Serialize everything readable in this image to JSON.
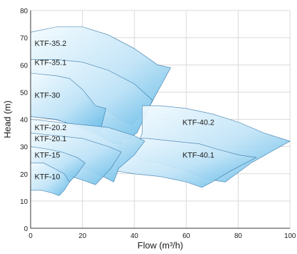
{
  "chart_data": {
    "type": "area",
    "title": "",
    "xlabel": "Flow (m³/h)",
    "ylabel": "Head (m)",
    "xlim": [
      0,
      100
    ],
    "ylim": [
      0,
      80
    ],
    "x_ticks": [
      0,
      20,
      40,
      60,
      80,
      100
    ],
    "y_ticks": [
      0,
      10,
      20,
      30,
      40,
      50,
      60,
      70,
      80
    ],
    "grid": true,
    "legend": "none",
    "colors": {
      "fill_light": "#eaf6fd",
      "fill_dark": "#5fb8e6",
      "stroke": "#3a78a8",
      "grid": "#d9d9d9"
    },
    "series": [
      {
        "name": "KTF-35.2",
        "points": [
          [
            0,
            72
          ],
          [
            10,
            74
          ],
          [
            20,
            74
          ],
          [
            30,
            71
          ],
          [
            40,
            66
          ],
          [
            49,
            60
          ],
          [
            54,
            59
          ],
          [
            46,
            45
          ],
          [
            39,
            38
          ],
          [
            36,
            39
          ],
          [
            30,
            43
          ],
          [
            20,
            47
          ],
          [
            10,
            50
          ],
          [
            0,
            52
          ]
        ]
      },
      {
        "name": "KTF-35.1",
        "points": [
          [
            0,
            62
          ],
          [
            10,
            62
          ],
          [
            20,
            61
          ],
          [
            30,
            58
          ],
          [
            40,
            53
          ],
          [
            47,
            47
          ],
          [
            41,
            35
          ],
          [
            35,
            31
          ],
          [
            32,
            31
          ],
          [
            27,
            34
          ],
          [
            18,
            38
          ],
          [
            9,
            40
          ],
          [
            0,
            41
          ]
        ]
      },
      {
        "name": "KTF-30",
        "points": [
          [
            0,
            57
          ],
          [
            10,
            56
          ],
          [
            15,
            55
          ],
          [
            20,
            51
          ],
          [
            25,
            45
          ],
          [
            29,
            44
          ],
          [
            27,
            36
          ],
          [
            24,
            35
          ],
          [
            19,
            37
          ],
          [
            10,
            40
          ],
          [
            0,
            41
          ]
        ]
      },
      {
        "name": "KTF-40.2",
        "points": [
          [
            43,
            45
          ],
          [
            50,
            45
          ],
          [
            60,
            44
          ],
          [
            70,
            42
          ],
          [
            80,
            39
          ],
          [
            90,
            35
          ],
          [
            100,
            32
          ],
          [
            85,
            24
          ],
          [
            75,
            17
          ],
          [
            68,
            18
          ],
          [
            60,
            21
          ],
          [
            50,
            24
          ],
          [
            43,
            25
          ],
          [
            40,
            27
          ],
          [
            43,
            35
          ]
        ]
      },
      {
        "name": "KTF-40.1",
        "points": [
          [
            35,
            33
          ],
          [
            45,
            33
          ],
          [
            55,
            32
          ],
          [
            65,
            31
          ],
          [
            72,
            29
          ],
          [
            80,
            27
          ],
          [
            87,
            26
          ],
          [
            77,
            21
          ],
          [
            70,
            17
          ],
          [
            66,
            15
          ],
          [
            60,
            17
          ],
          [
            50,
            19
          ],
          [
            40,
            20
          ],
          [
            33,
            21
          ]
        ]
      },
      {
        "name": "KTF-20.2",
        "points": [
          [
            0,
            40
          ],
          [
            10,
            39
          ],
          [
            20,
            38
          ],
          [
            30,
            37
          ],
          [
            40,
            34
          ],
          [
            44,
            32
          ],
          [
            40,
            27
          ],
          [
            34,
            22
          ],
          [
            32,
            17
          ],
          [
            26,
            20
          ],
          [
            18,
            23
          ],
          [
            8,
            25
          ],
          [
            0,
            26
          ]
        ]
      },
      {
        "name": "KTF-20.1",
        "points": [
          [
            0,
            35
          ],
          [
            10,
            34
          ],
          [
            20,
            33
          ],
          [
            30,
            30
          ],
          [
            35,
            28
          ],
          [
            31,
            22
          ],
          [
            25,
            16
          ],
          [
            22,
            17
          ],
          [
            16,
            19
          ],
          [
            8,
            20
          ],
          [
            0,
            20
          ]
        ]
      },
      {
        "name": "KTF-15",
        "points": [
          [
            0,
            30
          ],
          [
            7,
            29
          ],
          [
            12,
            28
          ],
          [
            18,
            26
          ],
          [
            21,
            24
          ],
          [
            18,
            20
          ],
          [
            15,
            17
          ],
          [
            11,
            18
          ],
          [
            6,
            19
          ],
          [
            0,
            19
          ]
        ]
      },
      {
        "name": "KTF-10",
        "points": [
          [
            0,
            24
          ],
          [
            5,
            24
          ],
          [
            9,
            22
          ],
          [
            13,
            20
          ],
          [
            15,
            17
          ],
          [
            13,
            14
          ],
          [
            11,
            12
          ],
          [
            8,
            13
          ],
          [
            4,
            14
          ],
          [
            0,
            14
          ]
        ]
      }
    ],
    "annotations": [
      {
        "text": "KTF-35.2",
        "x": 1,
        "y": 68
      },
      {
        "text": "KTF-35.1",
        "x": 1,
        "y": 61
      },
      {
        "text": "KTF-30",
        "x": 1,
        "y": 49
      },
      {
        "text": "KTF-40.2",
        "x": 58,
        "y": 39
      },
      {
        "text": "KTF-40.1",
        "x": 58,
        "y": 27
      },
      {
        "text": "KTF-20.2",
        "x": 1,
        "y": 37
      },
      {
        "text": "KTF-20.1",
        "x": 1,
        "y": 33
      },
      {
        "text": "KTF-15",
        "x": 1,
        "y": 27
      },
      {
        "text": "KTF-10",
        "x": 1,
        "y": 19
      }
    ]
  }
}
